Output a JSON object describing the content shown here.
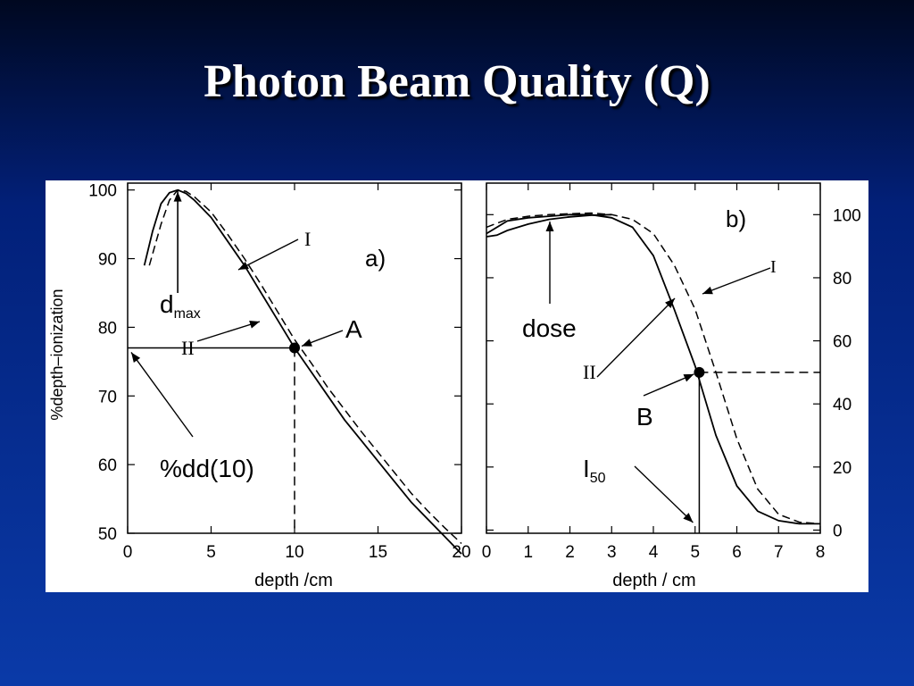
{
  "slide": {
    "title": "Photon Beam Quality (Q)"
  },
  "chart_data": [
    {
      "type": "line",
      "panel_label": "a)",
      "xlabel": "depth /cm",
      "ylabel": "%depth–ionization",
      "xlim": [
        0,
        20
      ],
      "ylim": [
        50,
        100
      ],
      "xticks": [
        0,
        5,
        10,
        15,
        20
      ],
      "yticks": [
        50,
        60,
        70,
        80,
        90,
        100
      ],
      "series": [
        {
          "name": "II",
          "style": "solid",
          "x": [
            1,
            1.5,
            2,
            2.5,
            3,
            3.5,
            4,
            5,
            6,
            7,
            8,
            9,
            10,
            11,
            12,
            13,
            14,
            15,
            16,
            17,
            18,
            19,
            20
          ],
          "y": [
            89,
            94,
            98,
            99.6,
            100,
            99.5,
            98.5,
            96,
            92.5,
            89,
            85,
            81,
            77,
            73.5,
            70,
            66.5,
            63.5,
            60.5,
            57.5,
            54.5,
            52,
            49.5,
            47
          ]
        },
        {
          "name": "I",
          "style": "dashed",
          "x": [
            1.3,
            2,
            2.5,
            3,
            3.5,
            4,
            5,
            6,
            7,
            8,
            9,
            10,
            11,
            12,
            13,
            14,
            15,
            16,
            17,
            18,
            19,
            20
          ],
          "y": [
            89,
            95,
            98.5,
            100,
            99.8,
            99,
            96.8,
            93.5,
            90,
            86.2,
            82.2,
            78.2,
            74.8,
            71.2,
            68,
            64.8,
            61.8,
            58.8,
            55.8,
            53.2,
            50.8,
            48.5
          ]
        }
      ],
      "annotations": {
        "dmax": {
          "label": "d",
          "subscript": "max",
          "depth": 3
        },
        "point_a": {
          "label": "A",
          "x": 10,
          "y": 77
        },
        "pdd": {
          "label": "%dd(10)",
          "y": 77
        },
        "curve_labels": [
          "I",
          "II"
        ]
      }
    },
    {
      "type": "line",
      "panel_label": "b)",
      "xlabel": "depth / cm",
      "ylabel": "",
      "xlim": [
        0,
        8
      ],
      "ylim": [
        0,
        100
      ],
      "xticks": [
        0,
        1,
        2,
        3,
        4,
        5,
        6,
        7,
        8
      ],
      "yticks": [
        0,
        20,
        40,
        60,
        80,
        100
      ],
      "series": [
        {
          "name": "II",
          "style": "solid",
          "x": [
            0,
            0.5,
            1,
            1.5,
            2,
            2.5,
            3,
            3.5,
            4,
            4.5,
            5,
            5.5,
            6,
            6.5,
            7,
            7.5,
            8
          ],
          "y": [
            94,
            98,
            99,
            99.5,
            100,
            100,
            99,
            96,
            87,
            70,
            52,
            30,
            14,
            6,
            3,
            2,
            2
          ]
        },
        {
          "name": "I",
          "style": "dashed",
          "x": [
            0,
            0.5,
            1,
            1.5,
            2,
            2.5,
            3,
            3.5,
            4,
            4.5,
            5,
            5.5,
            6,
            6.5,
            7,
            7.5,
            8
          ],
          "y": [
            96,
            98.5,
            99.5,
            100,
            100.3,
            100.5,
            100,
            98.5,
            94,
            84,
            70,
            50,
            29,
            13,
            5,
            2.5,
            2
          ]
        },
        {
          "name": "dose",
          "style": "solid",
          "x": [
            0,
            0.25,
            0.5,
            1,
            1.5,
            2,
            2.5,
            3
          ],
          "y": [
            93,
            93.5,
            95,
            97,
            98.5,
            99.3,
            99.8,
            100
          ]
        }
      ],
      "annotations": {
        "dose": {
          "label": "dose"
        },
        "point_b": {
          "label": "B",
          "x": 5.1,
          "y": 50
        },
        "i50": {
          "label": "I",
          "subscript": "50",
          "depth": 5.1
        },
        "curve_labels": [
          "I",
          "II"
        ]
      }
    }
  ]
}
